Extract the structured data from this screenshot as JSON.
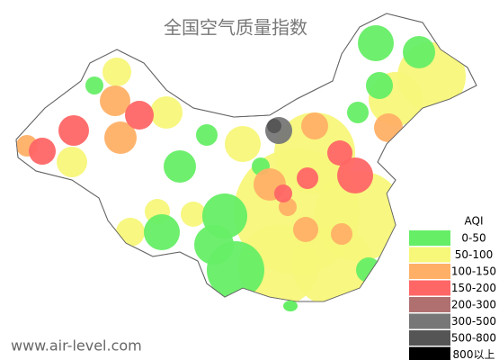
{
  "title": "全国空气质量指数",
  "legend": {
    "title": "AQI",
    "items": [
      {
        "label": "0-50",
        "color": "#66ee66"
      },
      {
        "label": "50-100",
        "color": "#f7f77a"
      },
      {
        "label": "100-150",
        "color": "#ffb066"
      },
      {
        "label": "150-200",
        "color": "#ff6666"
      },
      {
        "label": "200-300",
        "color": "#b07070"
      },
      {
        "label": "300-500",
        "color": "#777777"
      },
      {
        "label": "500-800",
        "color": "#555555"
      },
      {
        "label": "800以上",
        "color": "#000000"
      }
    ]
  },
  "footer": "www.air-level.com"
}
